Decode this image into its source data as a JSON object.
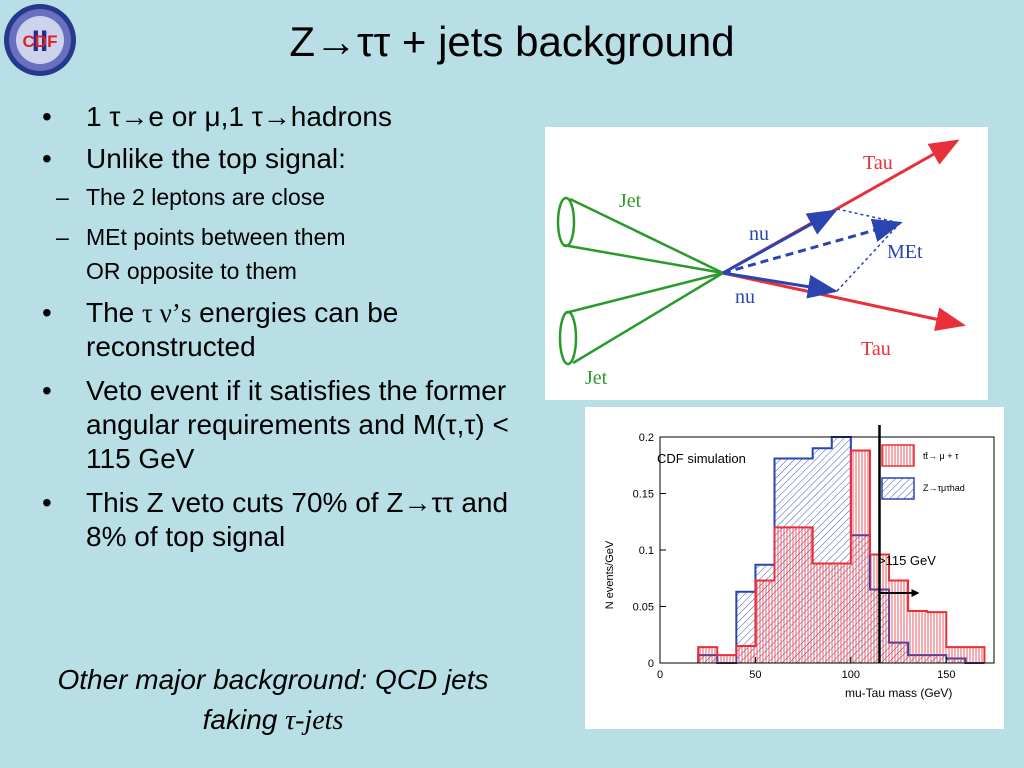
{
  "logo": {
    "text": "CDF",
    "numeral": "II"
  },
  "title": "Z→ττ + jets background",
  "bullets": {
    "b1": "1 τ→e or μ,1 τ→hadrons",
    "b2": "Unlike the top signal:",
    "b2_sub1": "The 2 leptons are close",
    "b2_sub2": "MEt points between them",
    "b2_sub2_cont": "OR opposite to them",
    "b3_pre": "The",
    "b3_symbol": "τ ν’s",
    "b3_post": "energies can be reconstructed",
    "b4": "Veto event if it satisfies the former angular requirements and M(τ,τ) < 115 GeV",
    "b5": "This Z veto cuts 70% of Z→ττ and 8% of top signal"
  },
  "note": {
    "line1": "Other major background: QCD jets",
    "line2_pre": "faking",
    "line2_symbol": "τ-jets"
  },
  "diagram": {
    "labels": {
      "tau_top": "Tau",
      "tau_bottom": "Tau",
      "jet_top": "Jet",
      "jet_bottom": "Jet",
      "nu_top": "nu",
      "nu_bottom": "nu",
      "met": "MEt"
    },
    "colors": {
      "tau": "#e8303a",
      "jet": "#2a9a2a",
      "nu": "#2a44b0"
    }
  },
  "chart_data": {
    "type": "bar",
    "xlabel": "mu-Tau mass (GeV)",
    "ylabel": "N events/GeV",
    "xlim": [
      0,
      175
    ],
    "ylim": [
      0,
      0.2
    ],
    "xticks": [
      0,
      50,
      100,
      150
    ],
    "yticks": [
      0,
      0.05,
      0.1,
      0.15,
      0.2
    ],
    "bin_width": 10,
    "bins": [
      20,
      30,
      40,
      50,
      60,
      70,
      80,
      90,
      100,
      110,
      120,
      130,
      140,
      150,
      160
    ],
    "series": [
      {
        "name": "tt̄→ μ + τ",
        "color": "#e8303a",
        "values": [
          0.014,
          0.007,
          0.015,
          0.073,
          0.12,
          0.12,
          0.088,
          0.088,
          0.188,
          0.096,
          0.073,
          0.046,
          0.045,
          0.014,
          0.014
        ]
      },
      {
        "name": "Z→τμτhad",
        "color": "#2a44b0",
        "values": [
          0.007,
          0.0,
          0.063,
          0.087,
          0.181,
          0.181,
          0.19,
          0.2,
          0.113,
          0.065,
          0.018,
          0.007,
          0.007,
          0.004,
          0.0
        ]
      }
    ],
    "annotations": {
      "simulation": "CDF simulation",
      "cut": ">115 GeV",
      "cut_x": 115
    }
  }
}
